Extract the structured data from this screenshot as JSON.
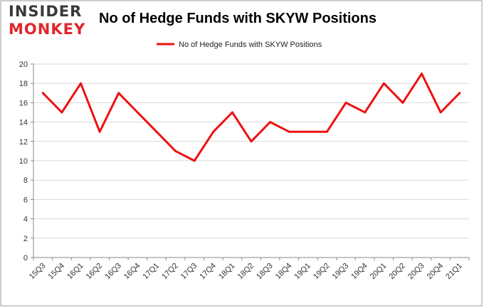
{
  "logo": {
    "line1": "INSIDER",
    "line2": "MONKEY"
  },
  "colors": {
    "series": "#ee1111",
    "grid": "#d9d9d9",
    "axis": "#888888",
    "frame": "#999999"
  },
  "chart_data": {
    "type": "line",
    "title": "No of Hedge Funds with SKYW Positions",
    "xlabel": "",
    "ylabel": "",
    "categories": [
      "15Q3",
      "15Q4",
      "16Q1",
      "16Q2",
      "16Q3",
      "16Q4",
      "17Q1",
      "17Q2",
      "17Q3",
      "17Q4",
      "18Q1",
      "18Q2",
      "18Q3",
      "18Q4",
      "19Q1",
      "19Q2",
      "19Q3",
      "19Q4",
      "20Q1",
      "20Q2",
      "20Q3",
      "20Q4",
      "21Q1"
    ],
    "series": [
      {
        "name": "No of Hedge Funds with SKYW Positions",
        "values": [
          17,
          15,
          18,
          13,
          17,
          15,
          13,
          11,
          10,
          13,
          15,
          12,
          14,
          13,
          13,
          13,
          16,
          15,
          18,
          16,
          19,
          15,
          17
        ]
      }
    ],
    "ylim": [
      0,
      20
    ],
    "yticks": [
      0,
      2,
      4,
      6,
      8,
      10,
      12,
      14,
      16,
      18,
      20
    ],
    "grid": true,
    "legend": "top-center"
  }
}
